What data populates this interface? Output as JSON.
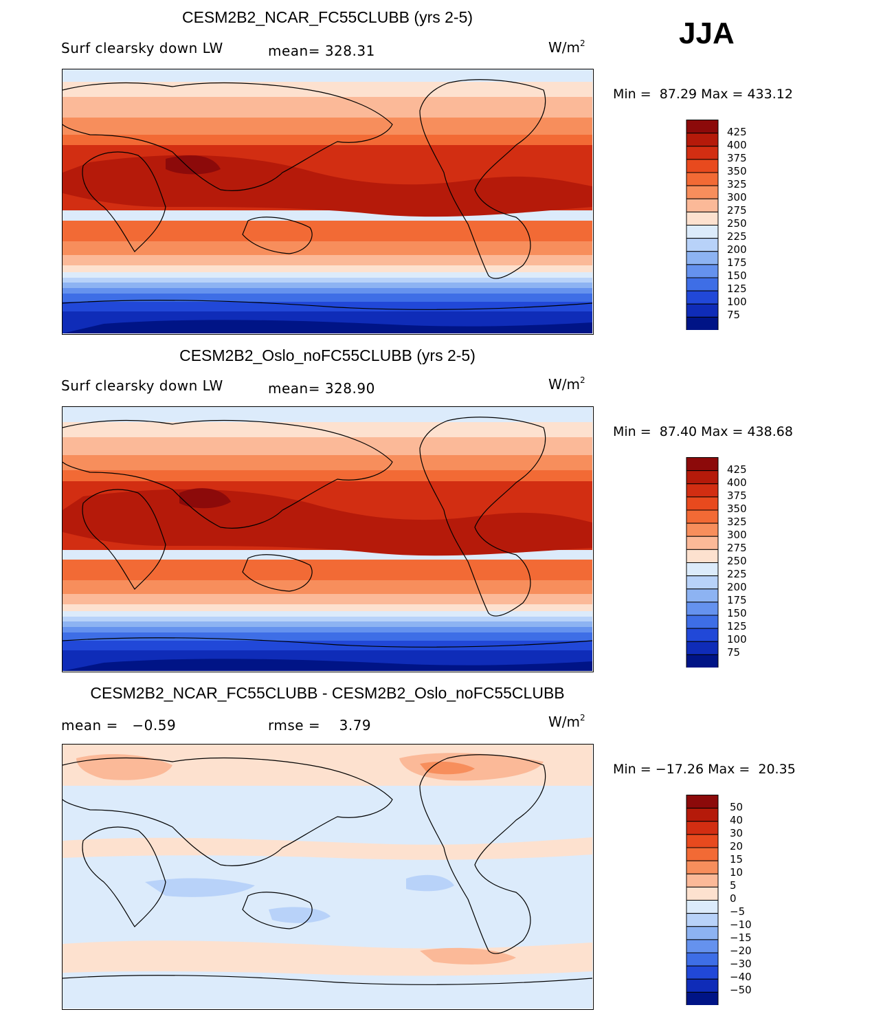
{
  "season": "JJA",
  "panels": [
    {
      "title": "CESM2B2_NCAR_FC55CLUBB (yrs 2-5)",
      "variable": "Surf clearsky down LW",
      "stat1": "mean= 328.31",
      "stat2": "",
      "units_base": "W/m",
      "units_exp": "2",
      "minmax": "Min =  87.29 Max = 433.12",
      "scale": "abs",
      "colorbar_labels": [
        "425",
        "400",
        "375",
        "350",
        "325",
        "300",
        "275",
        "250",
        "225",
        "200",
        "175",
        "150",
        "125",
        "100",
        "75"
      ]
    },
    {
      "title": "CESM2B2_Oslo_noFC55CLUBB (yrs 2-5)",
      "variable": "Surf clearsky down LW",
      "stat1": "mean= 328.90",
      "stat2": "",
      "units_base": "W/m",
      "units_exp": "2",
      "minmax": "Min =  87.40 Max = 438.68",
      "scale": "abs",
      "colorbar_labels": [
        "425",
        "400",
        "375",
        "350",
        "325",
        "300",
        "275",
        "250",
        "225",
        "200",
        "175",
        "150",
        "125",
        "100",
        "75"
      ]
    },
    {
      "title": "CESM2B2_NCAR_FC55CLUBB - CESM2B2_Oslo_noFC55CLUBB",
      "variable": "",
      "stat1": "mean =   −0.59",
      "stat2": "rmse =    3.79",
      "units_base": "W/m",
      "units_exp": "2",
      "minmax": "Min = −17.26 Max =  20.35",
      "scale": "diff",
      "colorbar_labels": [
        "50",
        "40",
        "30",
        "20",
        "15",
        "10",
        "5",
        "0",
        "−5",
        "−10",
        "−15",
        "−20",
        "−30",
        "−40",
        "−50"
      ]
    }
  ],
  "colors": {
    "abs_scale": [
      "#8c0a0a",
      "#b51a0a",
      "#d22e12",
      "#e84a1e",
      "#f26a35",
      "#f78e5c",
      "#fbb998",
      "#fde1cf",
      "#dcebfb",
      "#b8d2f9",
      "#8db3f2",
      "#6592ee",
      "#3e6ee6",
      "#2148d8",
      "#0f2cb8",
      "#001486"
    ],
    "diff_scale": [
      "#8c0a0a",
      "#b51a0a",
      "#d22e12",
      "#e84a1e",
      "#f26a35",
      "#f78e5c",
      "#fbb998",
      "#fde1cf",
      "#dcebfb",
      "#b8d2f9",
      "#8db3f2",
      "#6592ee",
      "#3e6ee6",
      "#2148d8",
      "#0f2cb8",
      "#001486"
    ]
  }
}
